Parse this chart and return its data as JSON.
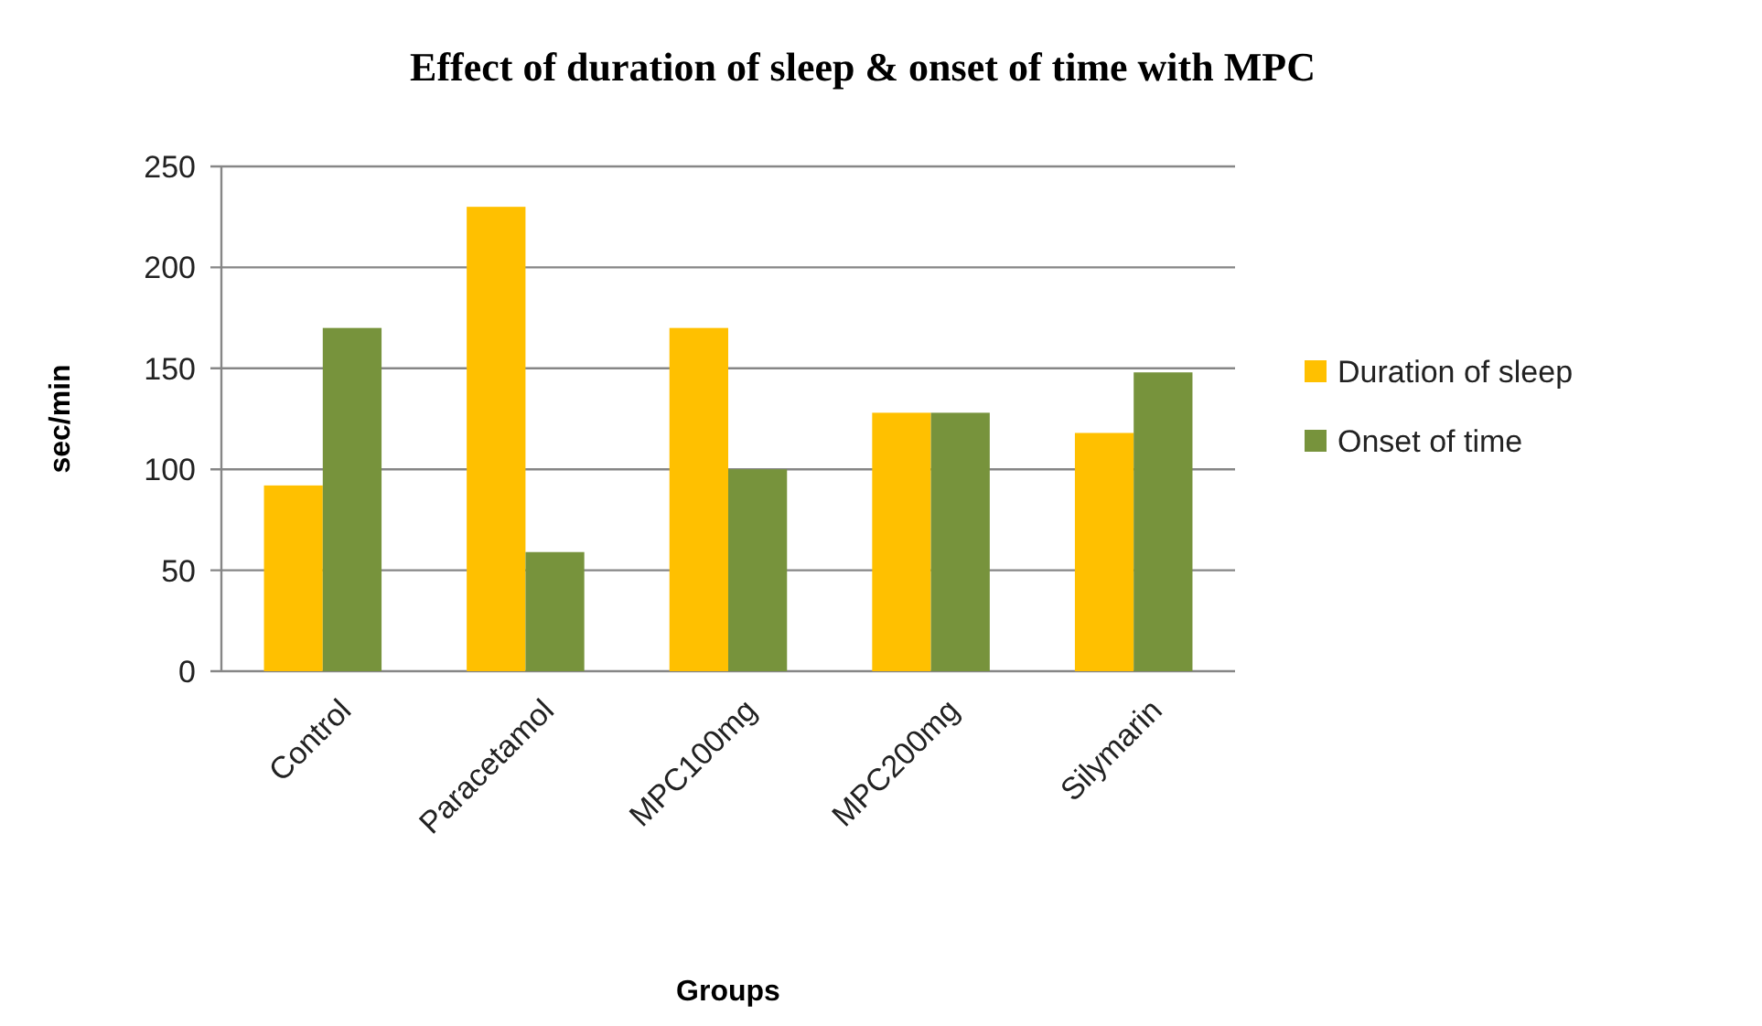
{
  "chart_data": {
    "type": "bar",
    "title": "Effect of duration  of sleep & onset of time with  MPC",
    "xlabel": "Groups",
    "ylabel": "sec/min",
    "categories": [
      "Control",
      "Paracetamol",
      "MPC100mg",
      "MPC200mg",
      "Silymarin"
    ],
    "series": [
      {
        "name": "Duration of sleep",
        "color": "#ffc000",
        "values": [
          92,
          230,
          170,
          128,
          118
        ]
      },
      {
        "name": "Onset of time",
        "color": "#77933c",
        "values": [
          170,
          59,
          100,
          128,
          148
        ]
      }
    ],
    "ylim": [
      0,
      250
    ],
    "yticks": [
      0,
      50,
      100,
      150,
      200,
      250
    ],
    "grid": "y",
    "legend": "right"
  }
}
